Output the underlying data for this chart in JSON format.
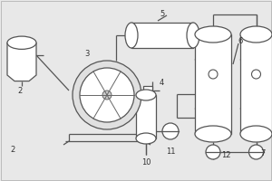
{
  "bg_color": "#e8e8e8",
  "line_color": "#555555",
  "label_color": "#333333",
  "lw": 0.9
}
